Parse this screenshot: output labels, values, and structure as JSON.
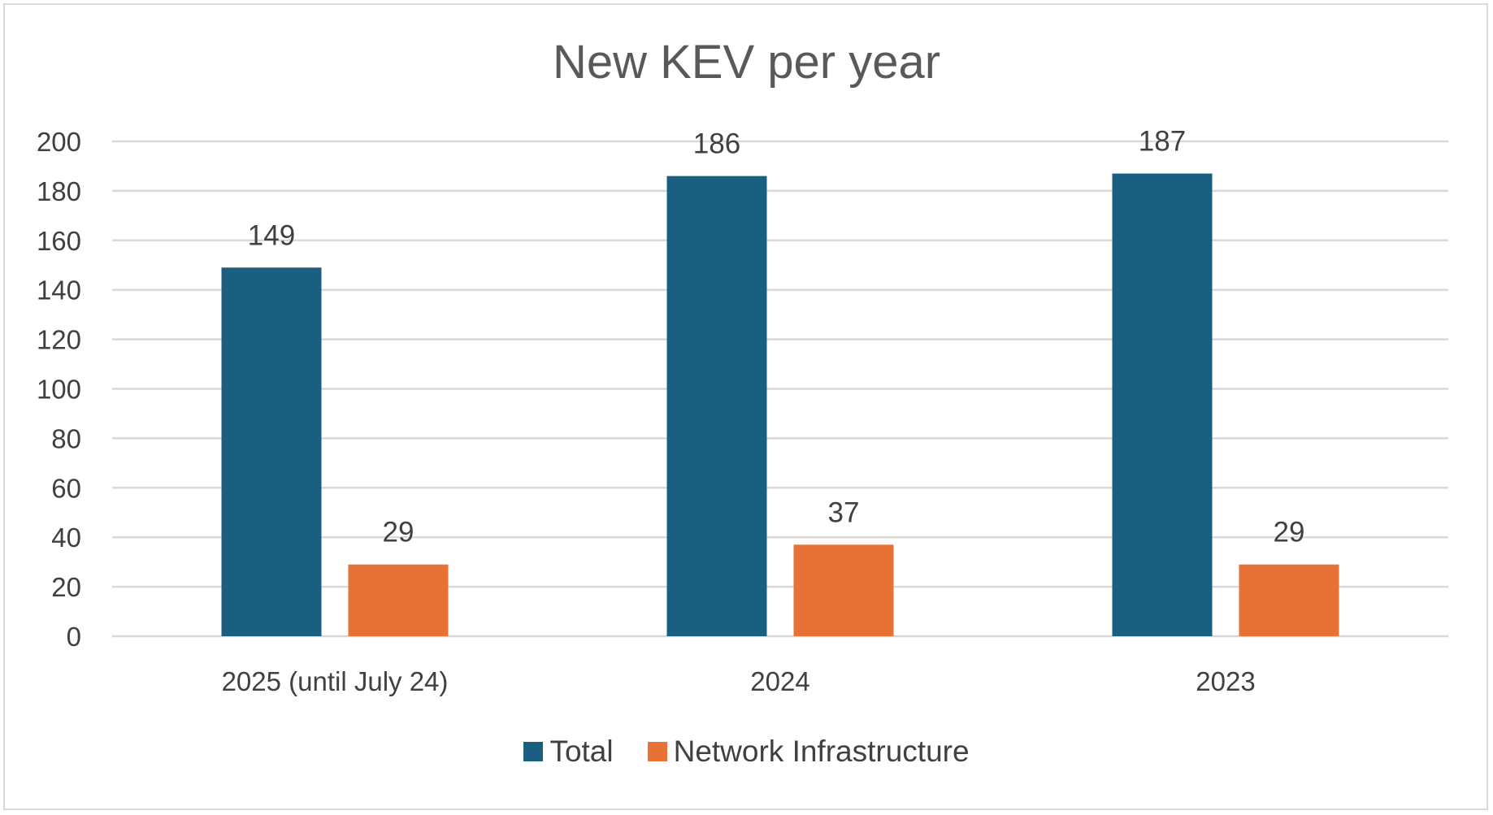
{
  "chart_data": {
    "type": "bar",
    "title": "New KEV per year",
    "categories": [
      "2025 (until July 24)",
      "2024",
      "2023"
    ],
    "series": [
      {
        "name": "Total",
        "values": [
          149,
          186,
          187
        ],
        "color": "#1a5e80"
      },
      {
        "name": "Network Infrastructure",
        "values": [
          29,
          37,
          29
        ],
        "color": "#e87236"
      }
    ],
    "ylim": [
      0,
      200
    ],
    "yticks": [
      0,
      20,
      40,
      60,
      80,
      100,
      120,
      140,
      160,
      180,
      200
    ],
    "grid": true,
    "legend_position": "bottom",
    "data_labels": true
  }
}
